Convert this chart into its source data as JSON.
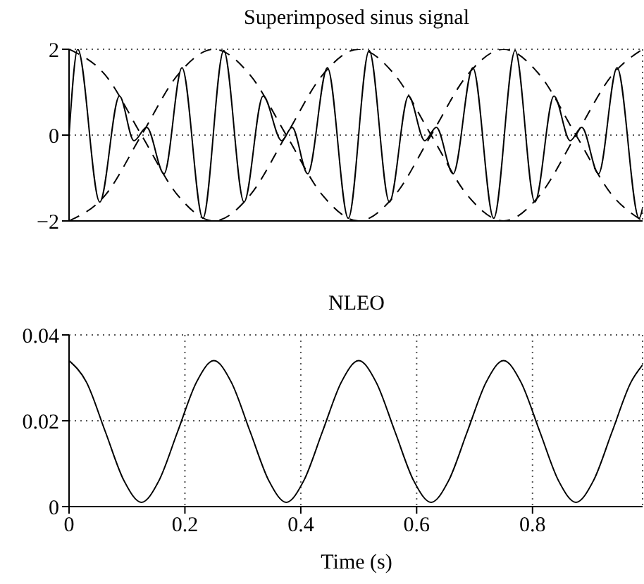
{
  "chart_data": [
    {
      "type": "line",
      "title": "Superimposed sinus signal",
      "xlim": [
        0,
        0.99
      ],
      "xticks": [
        0,
        0.2,
        0.4,
        0.6,
        0.8
      ],
      "ylim": [
        -2,
        2
      ],
      "yticks": [
        -2,
        0,
        2
      ],
      "grid": true,
      "tick_labels": "y",
      "series": [
        {
          "color": "#000000",
          "line_style": "solid",
          "x": [
            0,
            0.015,
            0.053,
            0.087,
            0.112,
            0.134,
            0.164,
            0.195,
            0.231,
            0.267,
            0.302,
            0.335,
            0.367,
            0.385,
            0.412,
            0.446,
            0.482,
            0.518,
            0.553,
            0.586,
            0.614,
            0.634,
            0.663,
            0.697,
            0.733,
            0.77,
            0.804,
            0.837,
            0.865,
            0.885,
            0.914,
            0.946,
            0.984,
            0.99
          ],
          "values": [
            0,
            2,
            -1.56,
            0.91,
            -0.13,
            0.18,
            -0.9,
            1.57,
            -1.94,
            1.97,
            -1.56,
            0.91,
            -0.13,
            0.18,
            -0.9,
            1.57,
            -1.94,
            1.97,
            -1.56,
            0.91,
            -0.13,
            0.18,
            -0.9,
            1.57,
            -1.94,
            1.97,
            -1.56,
            0.91,
            -0.13,
            0.18,
            -0.9,
            1.57,
            -1.94,
            -1.7
          ]
        },
        {
          "color": "#000000",
          "line_style": "dashed",
          "x": [
            0,
            0.0625,
            0.125,
            0.1875,
            0.25,
            0.3125,
            0.375,
            0.4375,
            0.5,
            0.5625,
            0.625,
            0.6875,
            0.75,
            0.8125,
            0.875,
            0.9375,
            0.99
          ],
          "values": [
            2,
            1.4,
            0,
            -1.4,
            -2,
            -1.4,
            0,
            1.4,
            2,
            1.4,
            0,
            -1.4,
            -2,
            -1.4,
            0,
            1.4,
            2
          ]
        },
        {
          "color": "#000000",
          "line_style": "dashed",
          "x": [
            0,
            0.0625,
            0.125,
            0.1875,
            0.25,
            0.3125,
            0.375,
            0.4375,
            0.5,
            0.5625,
            0.625,
            0.6875,
            0.75,
            0.8125,
            0.875,
            0.9375,
            0.99
          ],
          "values": [
            -2,
            -1.4,
            0,
            1.4,
            2,
            1.4,
            0,
            -1.4,
            -2,
            -1.4,
            0,
            1.4,
            2,
            1.4,
            0,
            -1.4,
            -2
          ]
        }
      ]
    },
    {
      "type": "line",
      "title": "NLEO",
      "xlabel": "Time (s)",
      "xlim": [
        0,
        0.99
      ],
      "xticks": [
        0,
        0.2,
        0.4,
        0.6,
        0.8
      ],
      "ylim": [
        0,
        0.04
      ],
      "yticks": [
        0,
        0.02,
        0.04
      ],
      "grid": true,
      "series": [
        {
          "color": "#000000",
          "line_style": "solid",
          "x": [
            0,
            0.03,
            0.0625,
            0.095,
            0.125,
            0.155,
            0.1875,
            0.22,
            0.25,
            0.28,
            0.3125,
            0.345,
            0.375,
            0.405,
            0.4375,
            0.47,
            0.5,
            0.53,
            0.5625,
            0.595,
            0.625,
            0.655,
            0.6875,
            0.72,
            0.75,
            0.78,
            0.8125,
            0.845,
            0.875,
            0.905,
            0.9375,
            0.97,
            0.99
          ],
          "values": [
            0.034,
            0.029,
            0.0175,
            0.006,
            0.001,
            0.006,
            0.0175,
            0.029,
            0.034,
            0.029,
            0.0175,
            0.006,
            0.001,
            0.006,
            0.0175,
            0.029,
            0.034,
            0.029,
            0.0175,
            0.006,
            0.001,
            0.006,
            0.0175,
            0.029,
            0.034,
            0.029,
            0.0175,
            0.006,
            0.001,
            0.006,
            0.0175,
            0.029,
            0.033
          ]
        }
      ]
    }
  ]
}
